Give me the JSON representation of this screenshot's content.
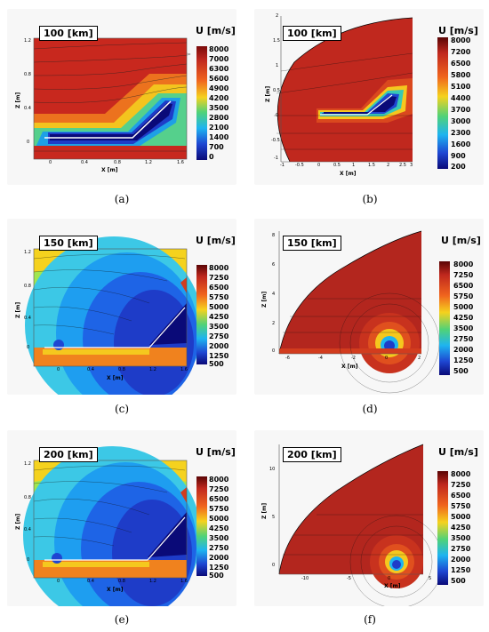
{
  "figure": {
    "panels": [
      {
        "id": "a",
        "caption": "(a)",
        "altitude": "100 [km]",
        "unit_title": "U [m/s]",
        "colorbar": [
          "8000",
          "7000",
          "6300",
          "5600",
          "4900",
          "4200",
          "3500",
          "2800",
          "2100",
          "1400",
          "700",
          "0"
        ],
        "xlabel": "X [m]",
        "zlabel": "Z [m]",
        "xticks": [
          "0",
          "0.4",
          "0.8",
          "1.2",
          "1.6"
        ],
        "zticks": [
          "1.2",
          "0.8",
          "0.4",
          "0"
        ]
      },
      {
        "id": "b",
        "caption": "(b)",
        "altitude": "100 [km]",
        "unit_title": "U [m/s]",
        "colorbar": [
          "8000",
          "7200",
          "6500",
          "5800",
          "5100",
          "4400",
          "3700",
          "3000",
          "2300",
          "1600",
          "900",
          "200"
        ],
        "xlabel": "X [m]",
        "zlabel": "Z [m]",
        "xticks": [
          "-1",
          "-0.5",
          "0",
          "0.5",
          "1",
          "1.5",
          "2",
          "2.5",
          "3"
        ],
        "zticks": [
          "2",
          "1.5",
          "1",
          "0.5",
          "0",
          "-0.5",
          "-1"
        ]
      },
      {
        "id": "c",
        "caption": "(c)",
        "altitude": "150 [km]",
        "unit_title": "U [m/s]",
        "colorbar": [
          "8000",
          "7250",
          "6500",
          "5750",
          "5000",
          "4250",
          "3500",
          "2750",
          "2000",
          "1250",
          "500"
        ],
        "xlabel": "X [m]",
        "zlabel": "Z [m]",
        "xticks": [
          "0",
          "0.4",
          "0.8",
          "1.2",
          "1.6"
        ],
        "zticks": [
          "1.2",
          "0.8",
          "0.4",
          "0"
        ]
      },
      {
        "id": "d",
        "caption": "(d)",
        "altitude": "150 [km]",
        "unit_title": "U [m/s]",
        "colorbar": [
          "8000",
          "7250",
          "6500",
          "5750",
          "5000",
          "4250",
          "3500",
          "2750",
          "2000",
          "1250",
          "500"
        ],
        "xlabel": "X [m]",
        "zlabel": "Z [m]",
        "xticks": [
          "-6",
          "-4",
          "-2",
          "0",
          "2"
        ],
        "zticks": [
          "8",
          "6",
          "4",
          "2",
          "0"
        ]
      },
      {
        "id": "e",
        "caption": "(e)",
        "altitude": "200 [km]",
        "unit_title": "U [m/s]",
        "colorbar": [
          "8000",
          "7250",
          "6500",
          "5750",
          "5000",
          "4250",
          "3500",
          "2750",
          "2000",
          "1250",
          "500"
        ],
        "xlabel": "X [m]",
        "zlabel": "Z [m]",
        "xticks": [
          "0",
          "0.4",
          "0.8",
          "1.2",
          "1.6"
        ],
        "zticks": [
          "1.2",
          "0.8",
          "0.4",
          "0"
        ]
      },
      {
        "id": "f",
        "caption": "(f)",
        "altitude": "200 [km]",
        "unit_title": "U [m/s]",
        "colorbar": [
          "8000",
          "7250",
          "6500",
          "5750",
          "5000",
          "4250",
          "3500",
          "2750",
          "2000",
          "1250",
          "500"
        ],
        "xlabel": "X [m]",
        "zlabel": "Z [m]",
        "xticks": [
          "-10",
          "-5",
          "0",
          "5"
        ],
        "zticks": [
          "10",
          "5",
          "0"
        ]
      }
    ],
    "colors": {
      "high": "#b3261e",
      "mid": "#f5e61e",
      "low": "#1030a8",
      "lowest": "#000080"
    }
  }
}
